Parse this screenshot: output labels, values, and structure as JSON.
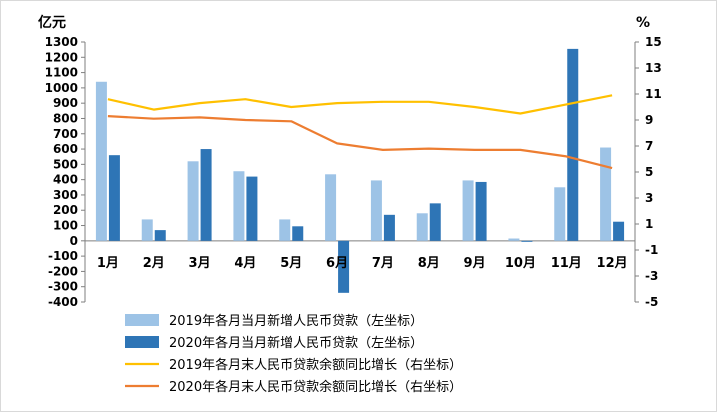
{
  "chart_data": {
    "type": "bar",
    "categories": [
      "1月",
      "2月",
      "3月",
      "4月",
      "5月",
      "6月",
      "7月",
      "8月",
      "9月",
      "10月",
      "11月",
      "12月"
    ],
    "y_left": {
      "unit": "亿元",
      "ylim": [
        -400,
        1300
      ],
      "ticks": [
        "1300",
        "1200",
        "1100",
        "1000",
        "900",
        "800",
        "700",
        "600",
        "500",
        "400",
        "300",
        "200",
        "100",
        "0",
        "-100",
        "-200",
        "-300",
        "-400"
      ]
    },
    "y_right": {
      "unit": "%",
      "ylim": [
        -5,
        15
      ],
      "ticks": [
        "15",
        "13",
        "11",
        "9",
        "7",
        "5",
        "3",
        "1",
        "-1",
        "-3",
        "-5"
      ]
    },
    "series": [
      {
        "name": "2019年各月当月新增人民币贷款（左坐标）",
        "type": "bar",
        "axis": "left",
        "color": "#9dc3e6",
        "values": [
          1040,
          140,
          520,
          455,
          140,
          435,
          395,
          180,
          395,
          15,
          350,
          610
        ]
      },
      {
        "name": "2020年各月当月新增人民币贷款（左坐标）",
        "type": "bar",
        "axis": "left",
        "color": "#2e75b6",
        "values": [
          560,
          70,
          600,
          420,
          95,
          -340,
          170,
          245,
          385,
          -5,
          1255,
          125
        ]
      },
      {
        "name": "2019年各月末人民币贷款余额同比增长（右坐标）",
        "type": "line",
        "axis": "right",
        "color": "#ffc000",
        "values": [
          10.6,
          9.8,
          10.3,
          10.6,
          10.0,
          10.3,
          10.4,
          10.4,
          10.0,
          9.5,
          10.2,
          10.9
        ]
      },
      {
        "name": "2020年各月末人民币贷款余额同比增长（右坐标）",
        "type": "line",
        "axis": "right",
        "color": "#ed7d31",
        "values": [
          9.3,
          9.1,
          9.2,
          9.0,
          8.9,
          7.2,
          6.7,
          6.8,
          6.7,
          6.7,
          6.2,
          5.3
        ]
      }
    ],
    "grid": false,
    "legend_position": "bottom-left"
  }
}
